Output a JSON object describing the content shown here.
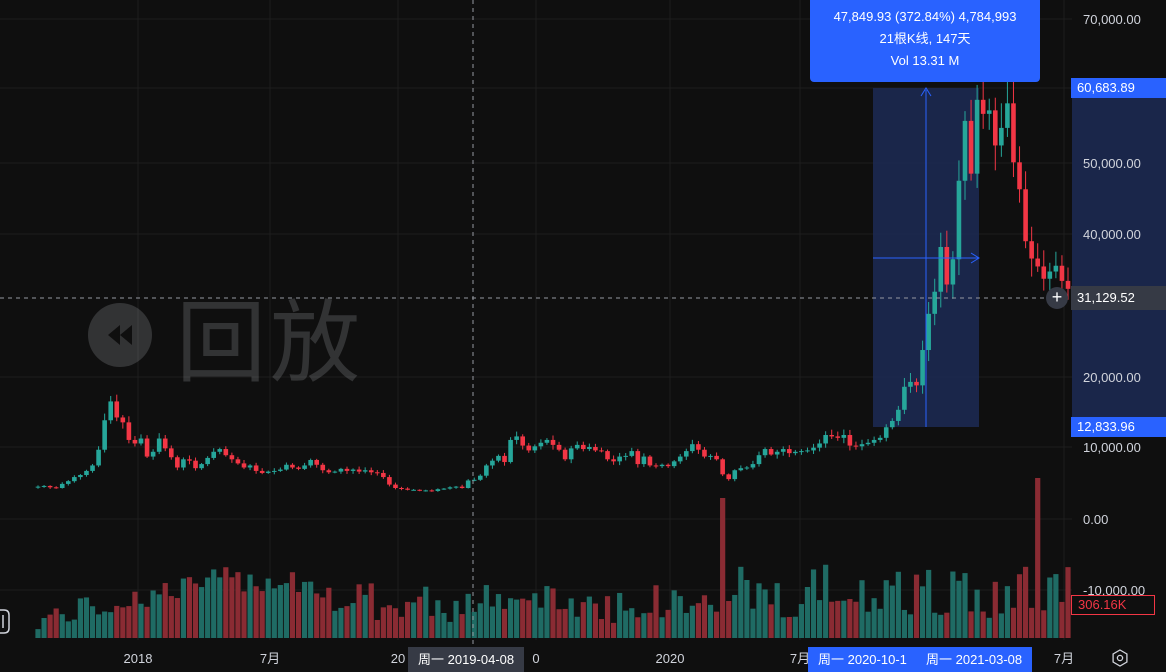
{
  "chart_data": {
    "type": "candlestick",
    "symbol_note": "",
    "y_axis": {
      "ticks": [
        "70,000.00",
        "60,000.00",
        "50,000.00",
        "40,000.00",
        "20,000.00",
        "10,000.00",
        "0.00",
        "-10,000.00"
      ],
      "scale": "log"
    },
    "x_axis": {
      "ticks": [
        "2018",
        "7月",
        "20",
        "0",
        "2020",
        "7月",
        "7月"
      ]
    },
    "weekly_close_series": [
      4200,
      4300,
      4100,
      4000,
      4600,
      5000,
      5600,
      5900,
      6500,
      7300,
      9600,
      13800,
      16500,
      14200,
      13500,
      11000,
      10500,
      11200,
      8600,
      9300,
      11200,
      9800,
      8500,
      7000,
      8200,
      8000,
      6900,
      7500,
      8400,
      9300,
      9700,
      8800,
      8200,
      7600,
      7000,
      7300,
      6500,
      6200,
      6400,
      6500,
      6700,
      7400,
      7000,
      6800,
      7300,
      8100,
      7400,
      6600,
      6300,
      6400,
      6800,
      6500,
      6700,
      6400,
      6600,
      6300,
      6200,
      5600,
      4500,
      4000,
      3900,
      3700,
      3700,
      3600,
      3600,
      3500,
      3800,
      3900,
      4100,
      4200,
      4000,
      5100,
      5200,
      5800,
      7300,
      8000,
      8700,
      7800,
      11000,
      11500,
      10200,
      9500,
      10100,
      10600,
      11000,
      10300,
      9600,
      8200,
      9800,
      10300,
      9700,
      10000,
      9500,
      9400,
      8200,
      7900,
      8600,
      8700,
      9400,
      7500,
      8600,
      7300,
      7200,
      7400,
      7200,
      7900,
      8600,
      9400,
      10400,
      9600,
      8600,
      8700,
      8200,
      6000,
      5300,
      6600,
      6900,
      7000,
      7500,
      8800,
      9700,
      8900,
      9300,
      9700,
      9100,
      9300,
      9400,
      9500,
      9900,
      10500,
      11700,
      11500,
      11300,
      11700,
      10200,
      10100,
      10400,
      10600,
      11000,
      11300,
      12800,
      13700,
      15300,
      18600,
      19300,
      18800,
      23800,
      28900,
      32000,
      38200,
      33000,
      36500,
      47500,
      56000,
      48500,
      59000,
      57000,
      57500,
      52500,
      55000,
      58500,
      50100,
      46300,
      39000,
      36600,
      35500,
      33800,
      34800,
      35600,
      33500,
      32400
    ],
    "highlight": {
      "range_high": "60,683.89",
      "range_low": "12,833.96",
      "info_line1": "47,849.93 (372.84%) 4,784,993",
      "info_line2": "21根K线, 147天",
      "info_line3": "Vol 13.31 M"
    },
    "crosshair": {
      "price": "31,129.52",
      "date": "周一 2019-04-08"
    },
    "range_dates": {
      "start": "周一 2020-10-1",
      "end": "周一 2021-03-08"
    },
    "volume_last": "306.16K",
    "watermark_text": "回放",
    "colors": {
      "up": "#26a69a",
      "down": "#f23645",
      "vol_up": "#1f6b64",
      "vol_down": "#8a2b33",
      "grid": "#1e1e1e",
      "highlight_fill": "#1c2a55",
      "accent": "#2962ff"
    }
  }
}
